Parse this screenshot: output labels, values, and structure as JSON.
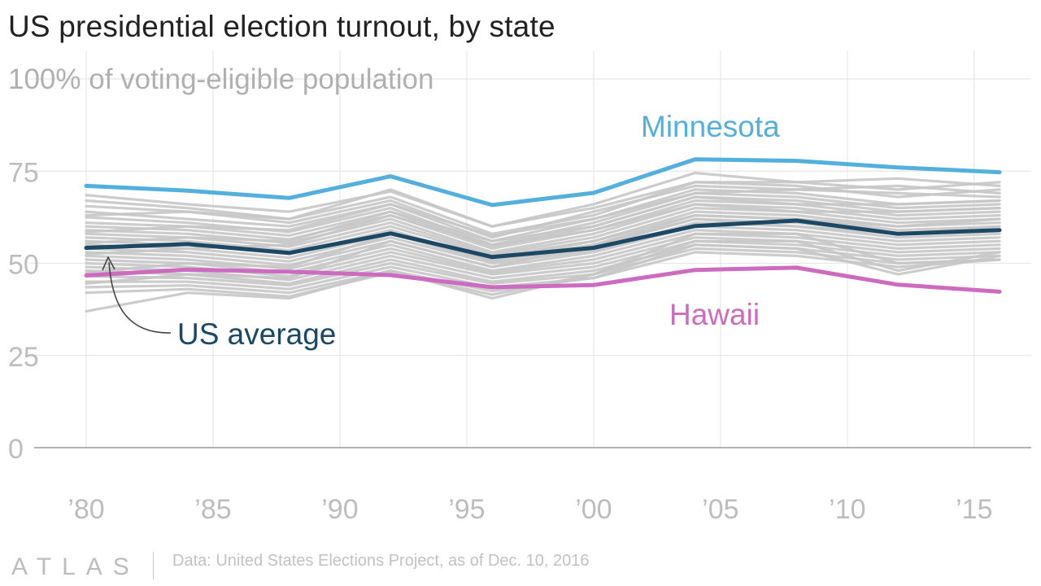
{
  "title": "US presidential election turnout, by state",
  "source": "Data: United States Elections Project, as of Dec. 10, 2016",
  "logo": "ATLAS",
  "colors": {
    "minnesota": "#53b0dd",
    "us_average": "#1a4865",
    "hawaii": "#cc6bbf",
    "states": "#c7c7c7",
    "grid": "#e8e8e8",
    "tick_text": "#bdbdbd",
    "axis_label": "#b0b0b0"
  },
  "chart_data": {
    "type": "line",
    "title": "US presidential election turnout, by state",
    "ylabel": "100% of voting-eligible population",
    "xlabel": "",
    "x": [
      1980,
      1984,
      1988,
      1992,
      1996,
      2000,
      2004,
      2008,
      2012,
      2016
    ],
    "x_tick_values": [
      1980,
      1985,
      1990,
      1995,
      2000,
      2005,
      2010,
      2015
    ],
    "x_tick_labels": [
      "’80",
      "’85",
      "’90",
      "’95",
      "’00",
      "’05",
      "’10",
      "’15"
    ],
    "y_ticks": [
      0,
      25,
      50,
      75
    ],
    "ylim": [
      0,
      100
    ],
    "xlim": [
      1980,
      2016
    ],
    "grid": true,
    "series": [
      {
        "name": "Minnesota",
        "values": [
          71,
          69.7,
          67.7,
          73.6,
          65.8,
          69.1,
          78.2,
          77.8,
          76,
          74.7
        ]
      },
      {
        "name": "US average",
        "values": [
          54.2,
          55.2,
          52.8,
          58.1,
          51.7,
          54.2,
          60.1,
          61.6,
          58,
          59
        ]
      },
      {
        "name": "Hawaii",
        "values": [
          46.7,
          48.3,
          47.7,
          46.8,
          43.5,
          44.1,
          48.2,
          48.8,
          44.2,
          42.3
        ]
      }
    ],
    "state_lines": [
      [
        68.5,
        66,
        64,
        69.5,
        60,
        66,
        74.5,
        72,
        70,
        72
      ],
      [
        67,
        65,
        62,
        68,
        58,
        63,
        72,
        71,
        68,
        70
      ],
      [
        65.5,
        64,
        61,
        67,
        57,
        64,
        71,
        70,
        69,
        68
      ],
      [
        64,
        62,
        60,
        66,
        56,
        62,
        70,
        69,
        66,
        67
      ],
      [
        62.5,
        61,
        58.5,
        65,
        55,
        61,
        69,
        68,
        65,
        66
      ],
      [
        61,
        60,
        57.5,
        64,
        54.5,
        60,
        68,
        67,
        64,
        65
      ],
      [
        60,
        59,
        56.5,
        63,
        54,
        59,
        67,
        66,
        63,
        64
      ],
      [
        59,
        58,
        55.5,
        62,
        53,
        58,
        66,
        65,
        62,
        63
      ],
      [
        58,
        57,
        54.5,
        61,
        52.5,
        57,
        65,
        64,
        61,
        62
      ],
      [
        57,
        56,
        53.5,
        60,
        52,
        56,
        64,
        63,
        60,
        61
      ],
      [
        56,
        55,
        52.5,
        59,
        51,
        55,
        63,
        62,
        59,
        60
      ],
      [
        55,
        54,
        51.5,
        58,
        50.5,
        54.5,
        62,
        61,
        58,
        59
      ],
      [
        54,
        53,
        50.5,
        57,
        50,
        53.5,
        61,
        60,
        57,
        58
      ],
      [
        53,
        52,
        49.5,
        56,
        49,
        53,
        60,
        59,
        56,
        57
      ],
      [
        52,
        51,
        48.5,
        55,
        48,
        52,
        59,
        58,
        55,
        56
      ],
      [
        51,
        50,
        47.5,
        54,
        47.5,
        51,
        58,
        57,
        54,
        55
      ],
      [
        50,
        49,
        46.5,
        53,
        47,
        50,
        57,
        56,
        53,
        54
      ],
      [
        49,
        48,
        45.5,
        52,
        46,
        49,
        56,
        55,
        52,
        53
      ],
      [
        48,
        47,
        44.5,
        51,
        45,
        48,
        55,
        54,
        51,
        52
      ],
      [
        46.5,
        46,
        44,
        50,
        44.5,
        47,
        54,
        53,
        50,
        51
      ],
      [
        45,
        45,
        43,
        49,
        43.5,
        46,
        53,
        52,
        49,
        51
      ],
      [
        43.5,
        44,
        42,
        48,
        42.5,
        46,
        55,
        54,
        47,
        52
      ],
      [
        42,
        43,
        41,
        47.5,
        41.5,
        47,
        56,
        56,
        48,
        53
      ],
      [
        37,
        42,
        40.5,
        48,
        40.5,
        47,
        58,
        58,
        50,
        51
      ],
      [
        63,
        64,
        62,
        70,
        60,
        65,
        72,
        72,
        73,
        71
      ],
      [
        58.5,
        60,
        59,
        66,
        57.5,
        62,
        69,
        70,
        71,
        69
      ],
      [
        55.5,
        57,
        56,
        64,
        56,
        60,
        68,
        66,
        66,
        67
      ],
      [
        52.5,
        54,
        55,
        63,
        55,
        59,
        66,
        64,
        64,
        65
      ],
      [
        47.5,
        50,
        49,
        58,
        51,
        56,
        63,
        62,
        60,
        62
      ],
      [
        44.5,
        47,
        46,
        56,
        49,
        55,
        62,
        60,
        58,
        60
      ]
    ],
    "labels": {
      "minnesota": "Minnesota",
      "us_average": "US average",
      "hawaii": "Hawaii"
    }
  }
}
